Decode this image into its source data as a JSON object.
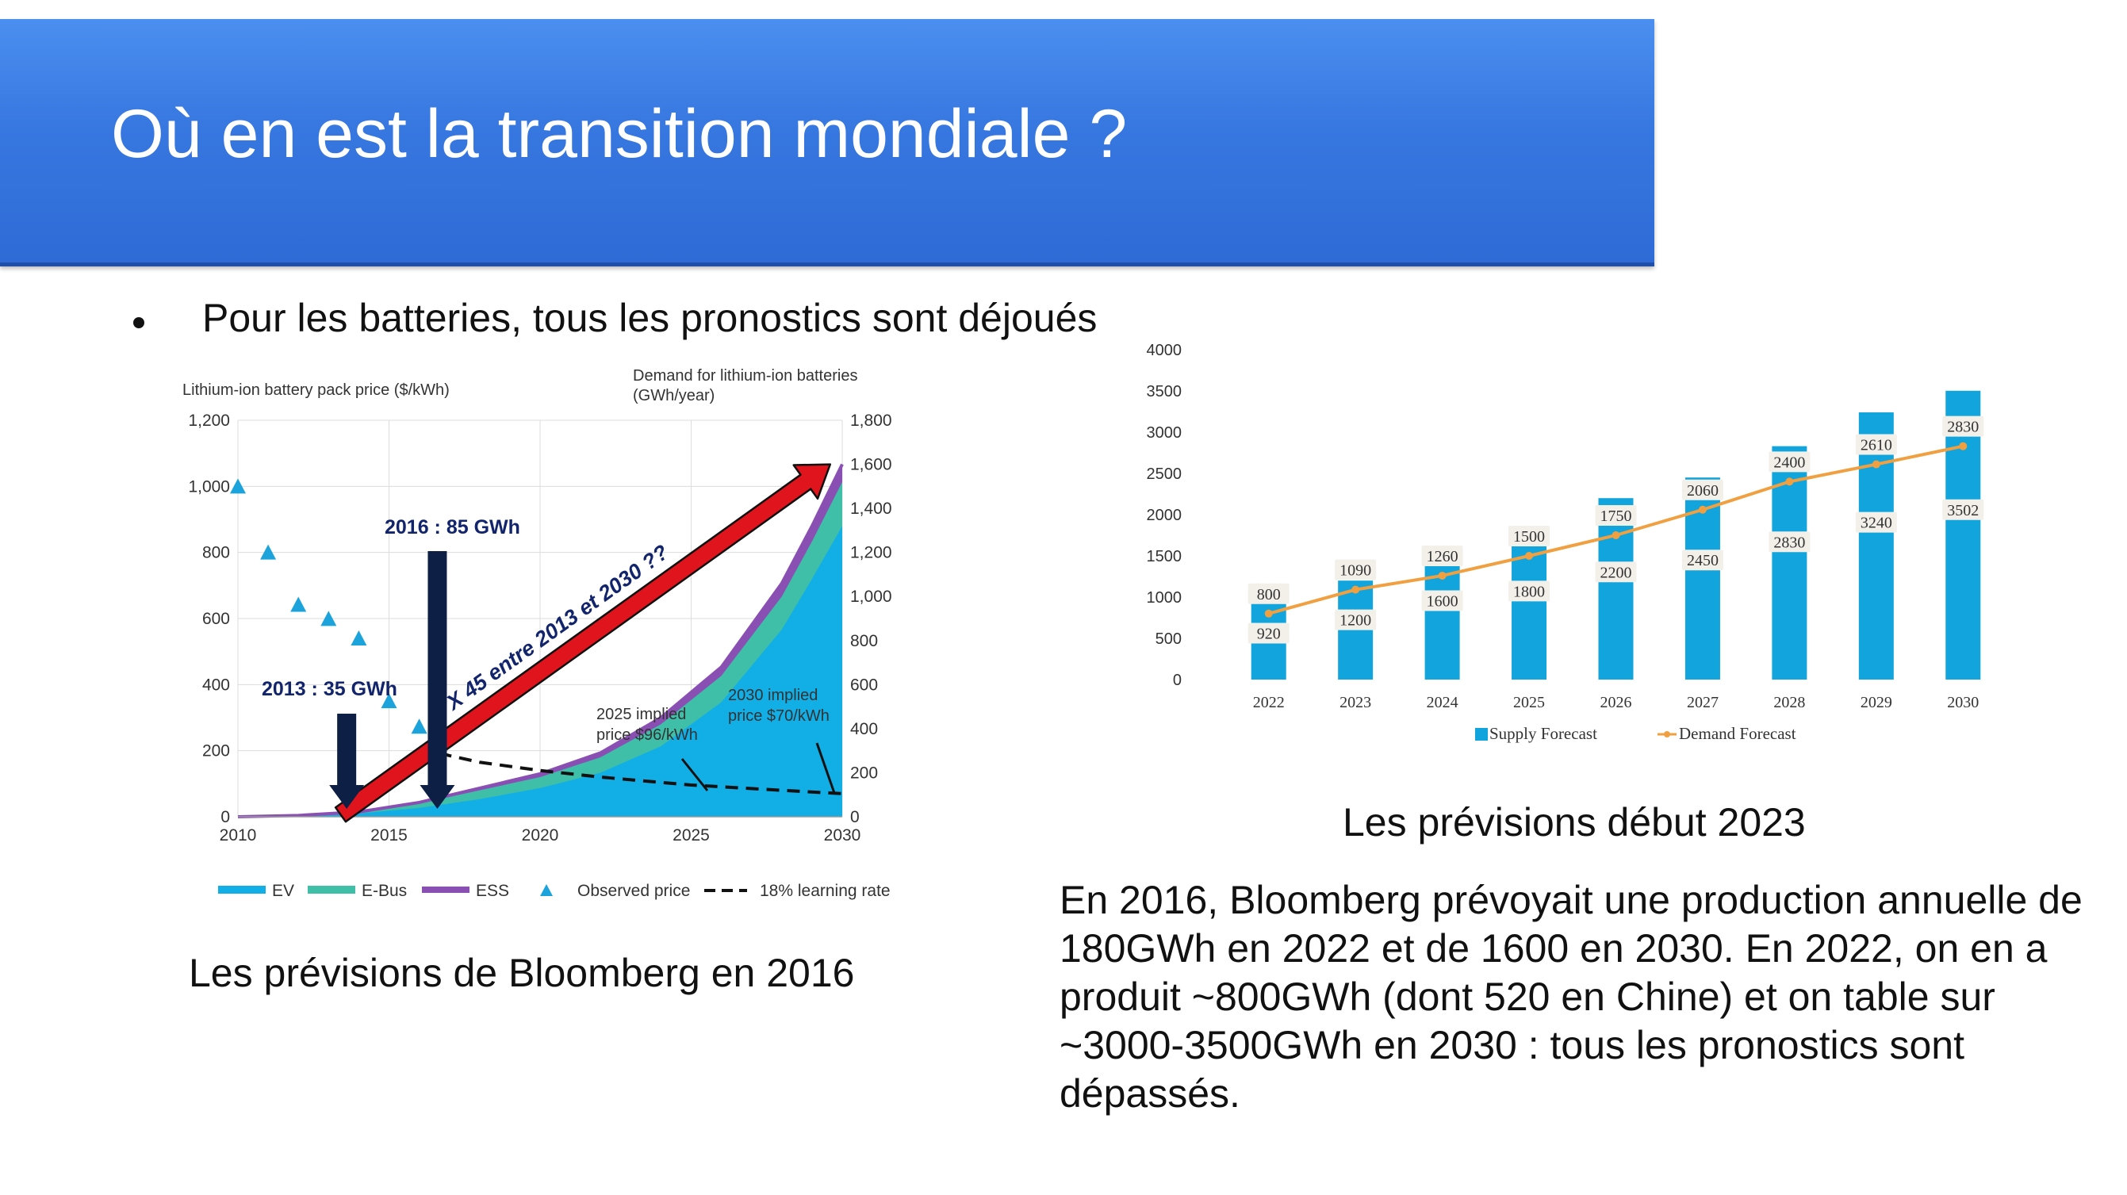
{
  "slide": {
    "title": "Où en est la transition mondiale ?",
    "bullet": "Pour les batteries, tous les pronostics sont déjoués",
    "caption_left": "Les prévisions de Bloomberg en 2016",
    "caption_right": "Les prévisions début 2023",
    "summary": "En 2016, Bloomberg prévoyait une production annuelle de 180GWh en 2022 et de 1600 en 2030. En 2022, on en a produit ~800GWh (dont 520 en Chine) et on table sur  ~3000-3500GWh en 2030 : tous les pronostics sont dépassés."
  },
  "colors": {
    "banner": "#3777e0",
    "ev": "#12aee6",
    "ebus": "#3fbfa8",
    "ess": "#8a4fb3",
    "observed": "#1ca3dc",
    "arrow_red": "#e0141c",
    "arrow_navy": "#0e1f45",
    "supply_bar": "#12a4dc",
    "demand_line": "#f0a040"
  },
  "chart_data": [
    {
      "type": "area",
      "y_left_label": "Lithium-ion battery pack price ($/kWh)",
      "y_right_label": "Demand for lithium-ion batteries\n(GWh/year)",
      "xlim": [
        2010,
        2030
      ],
      "x_ticks": [
        "2010",
        "2015",
        "2020",
        "2025",
        "2030"
      ],
      "y_left_ticks": [
        "0",
        "200",
        "400",
        "600",
        "800",
        "1,000",
        "1,200"
      ],
      "y_right_ticks": [
        "0",
        "200",
        "400",
        "600",
        "800",
        "1,000",
        "1,200",
        "1,400",
        "1,600",
        "1,800"
      ],
      "ylim_left": [
        0,
        1200
      ],
      "ylim_right": [
        0,
        1800
      ],
      "grid": true,
      "legend_position": "bottom",
      "legend": [
        "EV",
        "E-Bus",
        "ESS",
        "Observed price",
        "18% learning rate"
      ],
      "observed_price": {
        "x": [
          2010,
          2011,
          2012,
          2013,
          2014,
          2015,
          2016
        ],
        "y": [
          1000,
          800,
          642,
          599,
          540,
          350,
          273
        ]
      },
      "learning_rate": {
        "x": [
          2016,
          2017,
          2018,
          2020,
          2022,
          2025,
          2028,
          2030
        ],
        "y": [
          210,
          185,
          165,
          140,
          120,
          96,
          80,
          70
        ]
      },
      "demand_series": [
        {
          "name": "EV",
          "x": [
            2010,
            2012,
            2014,
            2016,
            2018,
            2020,
            2022,
            2024,
            2026,
            2028,
            2029,
            2030
          ],
          "y": [
            0,
            5,
            15,
            40,
            80,
            130,
            200,
            320,
            520,
            850,
            1080,
            1320
          ]
        },
        {
          "name": "E-Bus",
          "x": [
            2010,
            2012,
            2014,
            2016,
            2018,
            2020,
            2022,
            2024,
            2026,
            2028,
            2029,
            2030
          ],
          "y": [
            0,
            5,
            20,
            60,
            120,
            180,
            270,
            420,
            640,
            1000,
            1250,
            1520
          ]
        },
        {
          "name": "ESS",
          "x": [
            2010,
            2012,
            2014,
            2016,
            2018,
            2020,
            2022,
            2024,
            2026,
            2028,
            2029,
            2030
          ],
          "y": [
            0,
            6,
            22,
            65,
            130,
            195,
            290,
            450,
            680,
            1060,
            1320,
            1600
          ]
        }
      ],
      "annotations": {
        "a2013": "2013 : 35 GWh",
        "a2016": "2016 : 85 GWh",
        "arrow": "X 45 entre 2013 et 2030 ??",
        "p2025": "2025 implied\nprice $96/kWh",
        "p2030": "2030 implied\nprice $70/kWh"
      }
    },
    {
      "type": "bar",
      "categories": [
        "2022",
        "2023",
        "2024",
        "2025",
        "2026",
        "2027",
        "2028",
        "2029",
        "2030"
      ],
      "ylim": [
        0,
        4000
      ],
      "y_ticks": [
        "0",
        "500",
        "1000",
        "1500",
        "2000",
        "2500",
        "3000",
        "3500",
        "4000"
      ],
      "legend_position": "bottom",
      "series": [
        {
          "name": "Supply Forecast",
          "values": [
            920,
            1200,
            1600,
            1800,
            2200,
            2450,
            2830,
            3240,
            3502
          ]
        },
        {
          "name": "Demand Forecast",
          "values": [
            800,
            1090,
            1260,
            1500,
            1750,
            2060,
            2400,
            2610,
            2830
          ]
        }
      ]
    }
  ]
}
